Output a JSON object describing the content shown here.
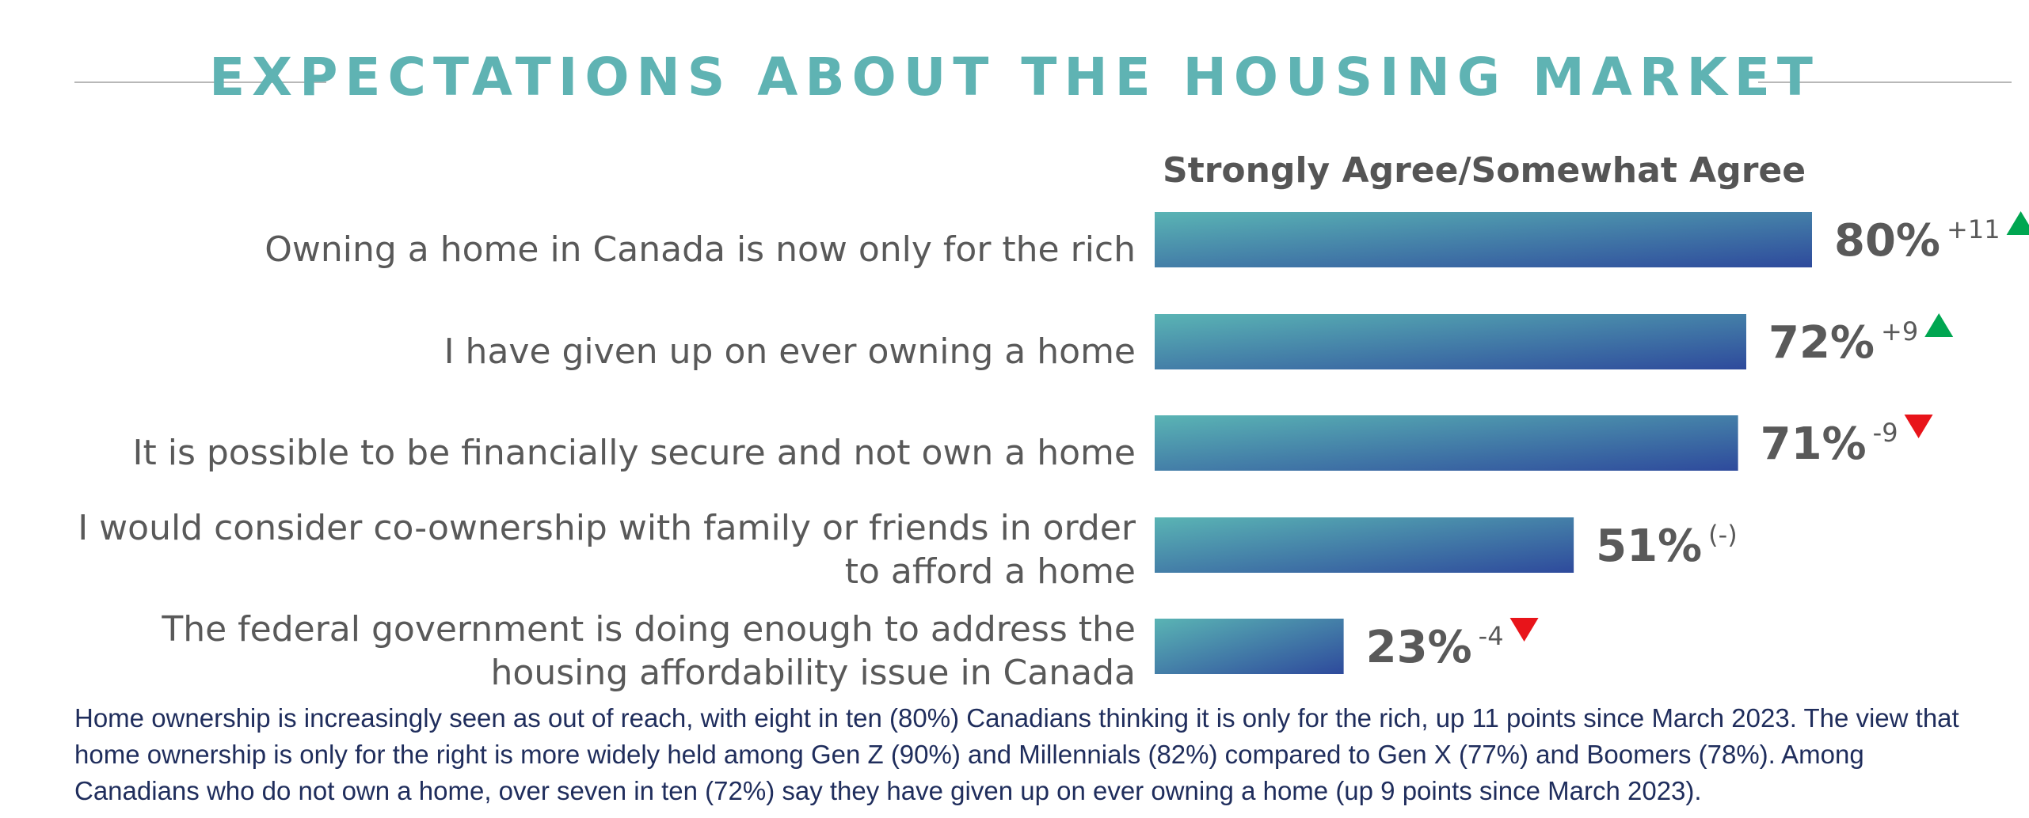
{
  "title": "EXPECTATIONS ABOUT THE HOUSING MARKET",
  "chart_data": {
    "type": "bar",
    "orientation": "horizontal",
    "series_label": "Strongly Agree/Somewhat Agree",
    "xlim": [
      0,
      100
    ],
    "categories": [
      "Owning a home in Canada is now only for the rich",
      "I have given up on ever owning a home",
      "It is possible to be financially secure and not own a home",
      "I would consider co-ownership with family or friends in order to afford a home",
      "The federal government is doing enough to address the housing affordability issue in Canada"
    ],
    "category_lines": [
      [
        "Owning a home in Canada is now only for the rich"
      ],
      [
        "I have given up on ever owning a home"
      ],
      [
        "It is possible to be financially secure and not own a home"
      ],
      [
        "I would consider co-ownership with family or friends in order",
        "to afford a home"
      ],
      [
        "The federal government is doing enough to address the",
        "housing affordability issue in Canada"
      ]
    ],
    "values": [
      80,
      72,
      71,
      51,
      23
    ],
    "value_labels": [
      "80%",
      "72%",
      "71%",
      "51%",
      "23%"
    ],
    "changes": [
      "+11",
      "+9",
      "-9",
      "(-)",
      "-4"
    ],
    "change_direction": [
      "up",
      "up",
      "down",
      "none",
      "down"
    ],
    "colors": {
      "bar_start": "#5ab4b4",
      "bar_end": "#2e4a9c",
      "up_arrow": "#00a651",
      "down_arrow": "#e8141a"
    }
  },
  "footnote": "Home ownership is increasingly seen as out of reach, with eight in ten (80%) Canadians thinking it is only for the rich, up 11 points since March 2023. The view that home ownership is only for the right is more widely held among Gen Z (90%) and Millennials (82%) compared to Gen X (77%) and Boomers (78%). Among Canadians who do not own a home, over seven in ten (72%) say they have given up on ever owning a home (up 9 points since March 2023)."
}
